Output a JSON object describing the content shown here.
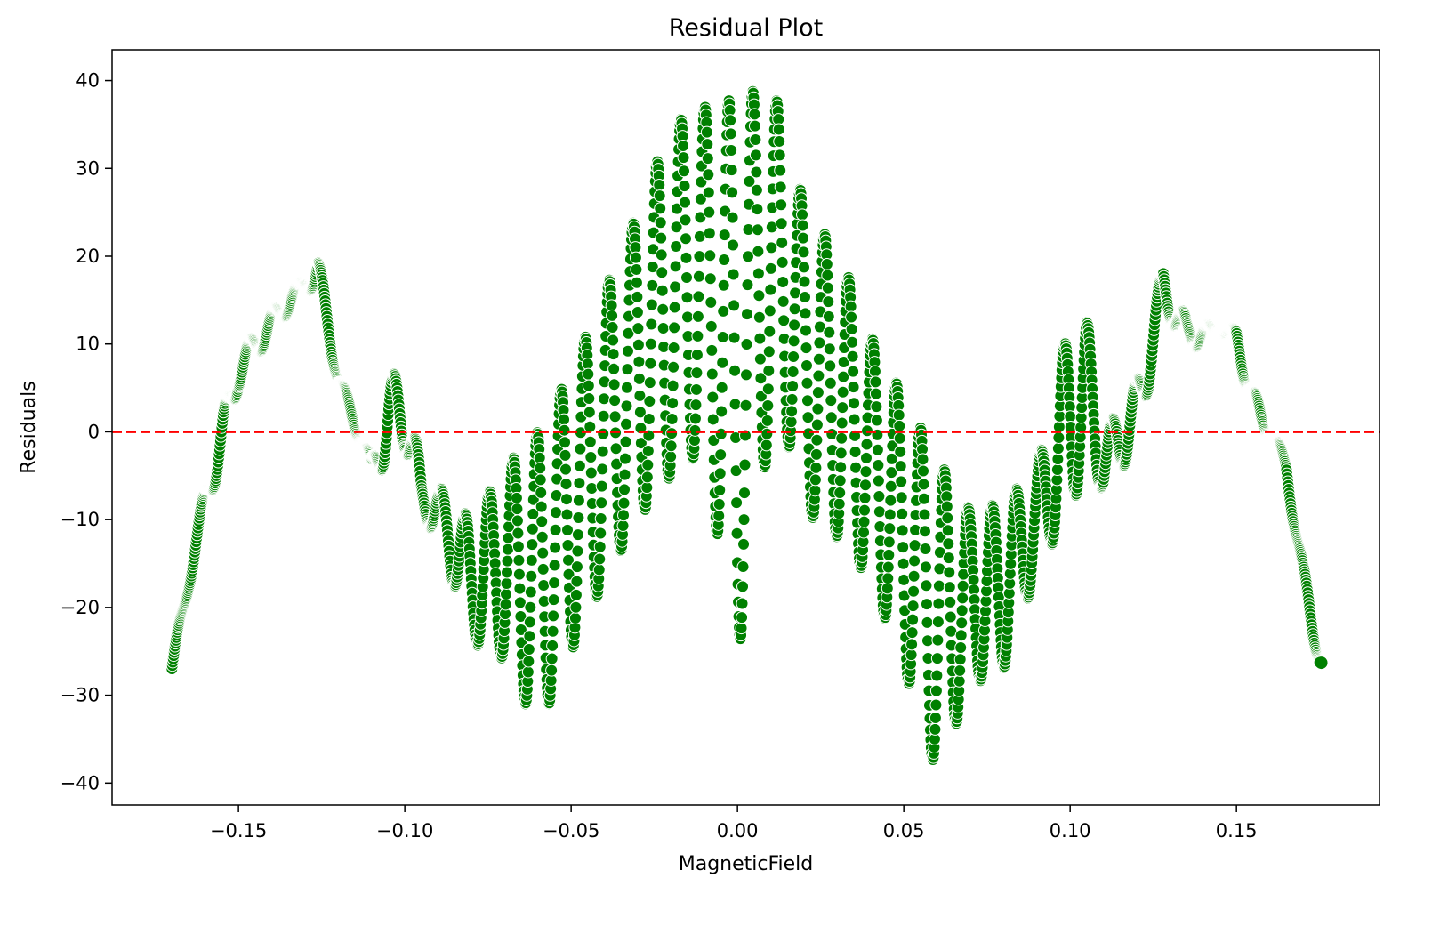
{
  "chart_data": {
    "type": "scatter",
    "title": "Residual Plot",
    "xlabel": "MagneticField",
    "ylabel": "Residuals",
    "xlim": [
      -0.188,
      0.193
    ],
    "ylim": [
      -42.5,
      43.5
    ],
    "x_ticks": [
      -0.15,
      -0.1,
      -0.05,
      0.0,
      0.05,
      0.1,
      0.15
    ],
    "x_tick_labels": [
      "−0.15",
      "−0.10",
      "−0.05",
      "0.00",
      "0.05",
      "0.10",
      "0.15"
    ],
    "y_ticks": [
      -40,
      -30,
      -20,
      -10,
      0,
      10,
      20,
      30,
      40
    ],
    "y_tick_labels": [
      "−40",
      "−30",
      "−20",
      "−10",
      "0",
      "10",
      "20",
      "30",
      "40"
    ],
    "grid": false,
    "legend": "none",
    "reference_line": {
      "y": 0,
      "style": "dashed",
      "color": "#ff0000"
    },
    "series_color": "#008000",
    "marker_edge_color": "#ffffff",
    "envelope": {
      "x": [
        -0.17,
        -0.165,
        -0.16,
        -0.155,
        -0.15,
        -0.14,
        -0.13,
        -0.126,
        -0.12,
        -0.115,
        -0.11,
        -0.105,
        -0.1,
        -0.095,
        -0.09,
        -0.08,
        -0.07,
        -0.06,
        -0.05,
        -0.04,
        -0.03,
        -0.02,
        -0.01,
        0.0,
        0.006,
        0.015,
        0.02,
        0.03,
        0.04,
        0.05,
        0.06,
        0.07,
        0.08,
        0.09,
        0.1,
        0.105,
        0.11,
        0.12,
        0.128,
        0.135,
        0.145,
        0.15,
        0.155,
        0.16,
        0.165,
        0.17,
        0.175
      ],
      "upper": [
        -26,
        -16,
        -6,
        2,
        9,
        14,
        18,
        20,
        7,
        2,
        -3,
        6,
        8,
        -5,
        -6,
        -10,
        -4,
        0,
        7,
        16,
        25,
        35,
        37,
        38,
        39,
        37,
        25,
        21,
        11,
        4,
        -3,
        -9,
        -8,
        -4,
        13,
        13,
        0,
        6,
        19,
        13,
        12,
        12,
        5,
        1,
        -3,
        -15,
        -24
      ],
      "lower": [
        -28,
        -18,
        -9,
        -4,
        5,
        11,
        16,
        16,
        5,
        0,
        -5,
        -4,
        -2,
        -10,
        -12,
        -24,
        -26,
        -34,
        -25,
        -17,
        -10,
        -5,
        -2,
        -27,
        -5,
        -1,
        -9,
        -12,
        -17,
        -27,
        -39,
        -29,
        -27,
        -16,
        -9,
        -4,
        -7,
        -2,
        14,
        9,
        11,
        10,
        1,
        -1,
        -5,
        -18,
        -27
      ],
      "half_period": 0.0036
    },
    "end_point": {
      "x": 0.1755,
      "y": -26.3
    }
  }
}
